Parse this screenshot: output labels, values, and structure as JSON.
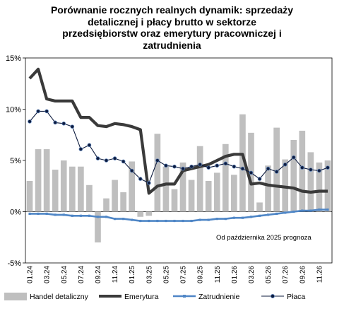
{
  "chart_data": {
    "type": "bar+line",
    "title_lines": [
      "Porównanie rocznych realnych dynamik: sprzedaży",
      "detalicznej i płacy brutto w sektorze",
      "przedsiębiorstw oraz emerytury pracowniczej i",
      "zatrudnienia"
    ],
    "xlabel": "",
    "ylabel": "",
    "ylim": [
      -5,
      15
    ],
    "y_ticks": [
      -5,
      0,
      5,
      10,
      15
    ],
    "y_tick_labels": [
      "-5%",
      "0%",
      "5%",
      "10%",
      "15%"
    ],
    "x_tick_labels": [
      "01.24",
      "03.24",
      "05.24",
      "07.24",
      "09.24",
      "11.24",
      "01.25",
      "03.25",
      "05.25",
      "07.25",
      "09.25",
      "11.25",
      "01.26",
      "03.26",
      "05.26",
      "07.26",
      "09.26",
      "11.26"
    ],
    "categories": [
      "01.24",
      "02.24",
      "03.24",
      "04.24",
      "05.24",
      "06.24",
      "07.24",
      "08.24",
      "09.24",
      "10.24",
      "11.24",
      "12.24",
      "01.25",
      "02.25",
      "03.25",
      "04.25",
      "05.25",
      "06.25",
      "07.25",
      "08.25",
      "09.25",
      "10.25",
      "11.25",
      "12.25",
      "01.26",
      "02.26",
      "03.26",
      "04.26",
      "05.26",
      "06.26",
      "07.26",
      "08.26",
      "09.26",
      "10.26",
      "11.26",
      "12.26"
    ],
    "annotation": "Od października 2025 prognoza",
    "legend_position": "bottom",
    "series": [
      {
        "name": "Handel detaliczny",
        "kind": "bar",
        "color": "#bfbfbf",
        "values": [
          3.0,
          6.1,
          6.1,
          4.1,
          5.0,
          4.4,
          4.4,
          2.6,
          -3.0,
          1.3,
          3.1,
          1.9,
          4.9,
          -0.5,
          -0.4,
          7.6,
          4.4,
          2.2,
          4.8,
          3.1,
          6.4,
          3.0,
          3.8,
          6.6,
          3.6,
          9.5,
          7.7,
          0.9,
          4.5,
          8.2,
          5.1,
          7.0,
          7.9,
          5.8,
          4.8,
          5.0
        ]
      },
      {
        "name": "Emerytura",
        "kind": "line",
        "color": "#3a3a3a",
        "values": [
          13.0,
          13.9,
          11.0,
          10.8,
          10.8,
          10.8,
          9.2,
          9.2,
          8.4,
          8.3,
          8.6,
          8.5,
          8.3,
          8.0,
          1.8,
          2.5,
          2.7,
          2.7,
          4.0,
          4.2,
          4.4,
          4.6,
          5.0,
          5.4,
          5.6,
          5.6,
          2.7,
          2.8,
          2.6,
          2.5,
          2.4,
          2.3,
          2.0,
          1.9,
          2.0,
          2.0
        ]
      },
      {
        "name": "Zatrudnienie",
        "kind": "line",
        "color": "#4f86c6",
        "values": [
          -0.2,
          -0.2,
          -0.2,
          -0.3,
          -0.3,
          -0.4,
          -0.4,
          -0.4,
          -0.5,
          -0.5,
          -0.7,
          -0.7,
          -0.8,
          -0.9,
          -0.9,
          -0.9,
          -0.9,
          -0.9,
          -0.9,
          -0.9,
          -0.8,
          -0.8,
          -0.7,
          -0.7,
          -0.6,
          -0.6,
          -0.5,
          -0.4,
          -0.3,
          -0.2,
          -0.1,
          0.0,
          0.1,
          0.1,
          0.2,
          0.2
        ]
      },
      {
        "name": "Płaca",
        "kind": "line-markers",
        "color": "#0d1b3e",
        "values": [
          8.8,
          9.8,
          9.8,
          8.7,
          8.6,
          8.3,
          6.1,
          6.5,
          5.2,
          5.0,
          5.2,
          4.9,
          4.0,
          3.2,
          2.8,
          5.0,
          4.5,
          4.4,
          4.2,
          4.4,
          4.6,
          4.3,
          4.5,
          4.7,
          4.4,
          4.2,
          3.8,
          3.2,
          4.2,
          3.9,
          4.6,
          5.3,
          4.3,
          4.1,
          4.0,
          4.3
        ]
      }
    ]
  }
}
